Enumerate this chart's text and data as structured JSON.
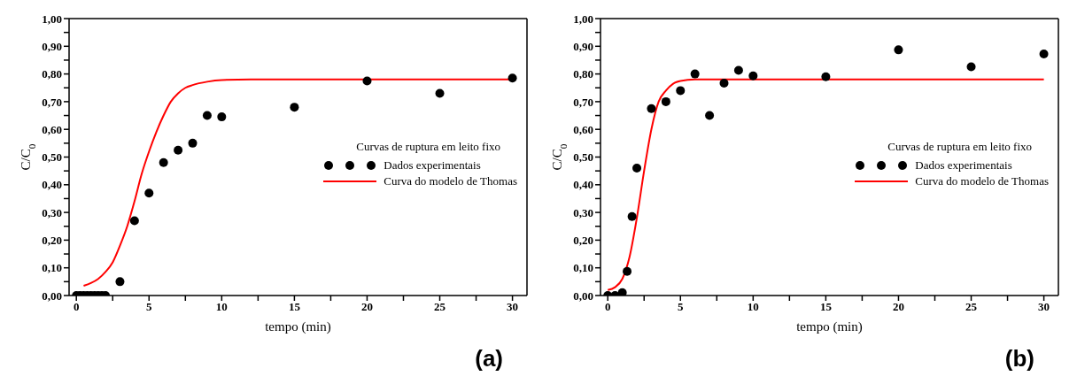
{
  "chart_data": [
    {
      "type": "scatter",
      "xlabel": "tempo (min)",
      "ylabel": "C/C$_{0}$",
      "legend_title": "Curvas de ruptura em leito fixo",
      "legend": "right",
      "grid": false,
      "annotations": [
        "(a)"
      ],
      "xlim": [
        -0.5,
        31
      ],
      "xticks": [
        0,
        {
          "value": 2.5,
          "label": null
        },
        5,
        {
          "value": 7.5,
          "label": null
        },
        10,
        {
          "value": 12.5,
          "label": null
        },
        15,
        {
          "value": 17.5,
          "label": null
        },
        20,
        {
          "value": 22.5,
          "label": null
        },
        25,
        {
          "value": 27.5,
          "label": null
        },
        30
      ],
      "ylim": [
        0,
        1
      ],
      "yticks": [
        {
          "value": 0,
          "label": "0,00"
        },
        {
          "value": 0.05,
          "label": null
        },
        {
          "value": 0.1,
          "label": "0,10"
        },
        {
          "value": 0.15,
          "label": null
        },
        {
          "value": 0.2,
          "label": "0,20"
        },
        {
          "value": 0.25,
          "label": null
        },
        {
          "value": 0.3,
          "label": "0,30"
        },
        {
          "value": 0.35,
          "label": null
        },
        {
          "value": 0.4,
          "label": "0,40"
        },
        {
          "value": 0.45,
          "label": null
        },
        {
          "value": 0.5,
          "label": "0,50"
        },
        {
          "value": 0.55,
          "label": null
        },
        {
          "value": 0.6,
          "label": "0,60"
        },
        {
          "value": 0.65,
          "label": null
        },
        {
          "value": 0.7,
          "label": "0,70"
        },
        {
          "value": 0.75,
          "label": null
        },
        {
          "value": 0.8,
          "label": "0,80"
        },
        {
          "value": 0.85,
          "label": null
        },
        {
          "value": 0.9,
          "label": "0,90"
        },
        {
          "value": 0.95,
          "label": null
        },
        {
          "value": 1,
          "label": "1,00"
        }
      ],
      "series": [
        {
          "name": "Dados experimentais",
          "marker": "circle",
          "color": "#000000",
          "x": [
            0,
            0.25,
            0.5,
            0.75,
            1,
            1.25,
            1.5,
            1.75,
            2,
            3,
            4,
            5,
            6,
            7,
            8,
            9,
            10,
            15,
            20,
            25,
            30
          ],
          "values": [
            0,
            0,
            0,
            0,
            0,
            0,
            0,
            0,
            0,
            0.05,
            0.27,
            0.37,
            0.48,
            0.525,
            0.55,
            0.65,
            0.645,
            0.68,
            0.775,
            0.73,
            0.785
          ]
        },
        {
          "name": "Curva do modelo de Thomas",
          "type": "line",
          "marker": "none",
          "color": "#ff0000",
          "x": [
            0.5,
            1,
            1.5,
            2,
            2.5,
            3,
            3.5,
            4,
            4.5,
            5,
            5.5,
            6,
            6.5,
            7,
            7.5,
            8,
            9,
            10,
            12,
            30
          ],
          "values": [
            0.035,
            0.045,
            0.06,
            0.085,
            0.12,
            0.18,
            0.25,
            0.34,
            0.44,
            0.52,
            0.59,
            0.65,
            0.7,
            0.73,
            0.75,
            0.76,
            0.772,
            0.778,
            0.78,
            0.78
          ]
        }
      ]
    },
    {
      "type": "scatter",
      "xlabel": "tempo (min)",
      "ylabel": "C/C$_{0}$",
      "legend_title": "Curvas de ruptura em leito fixo",
      "legend": "right",
      "grid": false,
      "annotations": [
        "(b)"
      ],
      "xlim": [
        -0.5,
        31
      ],
      "xticks": [
        0,
        {
          "value": 2.5,
          "label": null
        },
        5,
        {
          "value": 7.5,
          "label": null
        },
        10,
        {
          "value": 12.5,
          "label": null
        },
        15,
        {
          "value": 17.5,
          "label": null
        },
        20,
        {
          "value": 22.5,
          "label": null
        },
        25,
        {
          "value": 27.5,
          "label": null
        },
        30
      ],
      "ylim": [
        0,
        1
      ],
      "yticks": [
        {
          "value": 0,
          "label": "0,00"
        },
        {
          "value": 0.05,
          "label": null
        },
        {
          "value": 0.1,
          "label": "0,10"
        },
        {
          "value": 0.15,
          "label": null
        },
        {
          "value": 0.2,
          "label": "0,20"
        },
        {
          "value": 0.25,
          "label": null
        },
        {
          "value": 0.3,
          "label": "0,30"
        },
        {
          "value": 0.35,
          "label": null
        },
        {
          "value": 0.4,
          "label": "0,40"
        },
        {
          "value": 0.45,
          "label": null
        },
        {
          "value": 0.5,
          "label": "0,50"
        },
        {
          "value": 0.55,
          "label": null
        },
        {
          "value": 0.6,
          "label": "0,60"
        },
        {
          "value": 0.65,
          "label": null
        },
        {
          "value": 0.7,
          "label": "0,70"
        },
        {
          "value": 0.75,
          "label": null
        },
        {
          "value": 0.8,
          "label": "0,80"
        },
        {
          "value": 0.85,
          "label": null
        },
        {
          "value": 0.9,
          "label": "0,90"
        },
        {
          "value": 0.95,
          "label": null
        },
        {
          "value": 1,
          "label": "1,00"
        }
      ],
      "series": [
        {
          "name": "Dados experimentais",
          "marker": "circle",
          "color": "#000000",
          "x": [
            0,
            0.5,
            1,
            1.33,
            1.67,
            2,
            3,
            4,
            5,
            6,
            7,
            8,
            9,
            10,
            15,
            20,
            25,
            30
          ],
          "values": [
            0,
            0,
            0.01,
            0.087,
            0.285,
            0.46,
            0.675,
            0.7,
            0.74,
            0.8,
            0.65,
            0.767,
            0.813,
            0.793,
            0.79,
            0.887,
            0.826,
            0.872
          ]
        },
        {
          "name": "Curva do modelo de Thomas",
          "type": "line",
          "marker": "none",
          "color": "#ff0000",
          "x": [
            0,
            0.5,
            1,
            1.5,
            2,
            2.5,
            3,
            3.5,
            4,
            4.5,
            5,
            6,
            8,
            30
          ],
          "values": [
            0.02,
            0.03,
            0.06,
            0.14,
            0.28,
            0.45,
            0.6,
            0.7,
            0.74,
            0.765,
            0.775,
            0.78,
            0.78,
            0.78
          ]
        }
      ]
    }
  ]
}
